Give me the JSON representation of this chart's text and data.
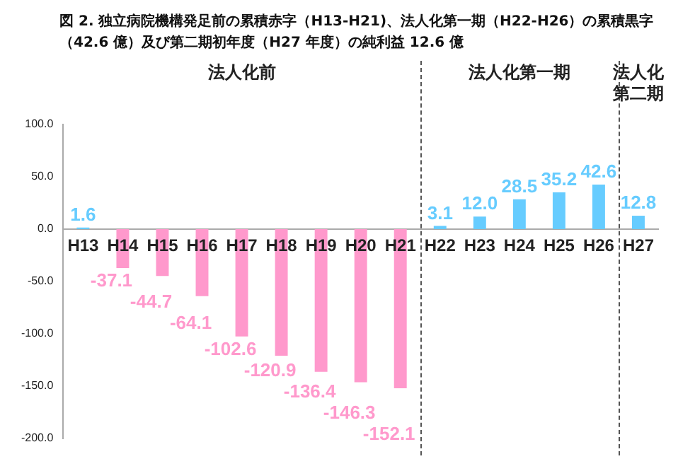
{
  "chart_data": {
    "type": "bar",
    "title": "図 2. 独立病院機構発足前の累積赤字（H13-H21)、法人化第一期（H22-H26）の累積黒字（42.6 億）及び第二期初年度（H27 年度）の純利益 12.6 億",
    "categories": [
      "H13",
      "H14",
      "H15",
      "H16",
      "H17",
      "H18",
      "H19",
      "H20",
      "H21",
      "H22",
      "H23",
      "H24",
      "H25",
      "H26",
      "H27"
    ],
    "values": [
      1.6,
      -37.1,
      -44.7,
      -64.1,
      -102.6,
      -120.9,
      -136.4,
      -146.3,
      -152.1,
      3.1,
      12.0,
      28.5,
      35.2,
      42.6,
      12.8
    ],
    "value_labels": [
      "1.6",
      "-37.1",
      "-44.7",
      "-64.1",
      "-102.6",
      "-120.9",
      "-136.4",
      "-146.3",
      "-152.1",
      "3.1",
      "12.0",
      "28.5",
      "35.2",
      "42.6",
      "12.8"
    ],
    "colors": [
      "#66ccff",
      "#ff99cc",
      "#ff99cc",
      "#ff99cc",
      "#ff99cc",
      "#ff99cc",
      "#ff99cc",
      "#ff99cc",
      "#ff99cc",
      "#66ccff",
      "#66ccff",
      "#66ccff",
      "#66ccff",
      "#66ccff",
      "#66ccff"
    ],
    "ylim": [
      -200,
      100
    ],
    "yticks": [
      {
        "value": -200,
        "label": "-200.0"
      },
      {
        "value": -150,
        "label": "-150.0"
      },
      {
        "value": -100,
        "label": "-100.0"
      },
      {
        "value": -50,
        "label": "-50.0"
      },
      {
        "value": 0,
        "label": "0.0"
      },
      {
        "value": 50,
        "label": "50.0"
      },
      {
        "value": 100,
        "label": "100.0"
      }
    ],
    "grid": false,
    "legend": false,
    "annotations": [
      "法人化前",
      "法人化第一期",
      "法人化第二期"
    ]
  }
}
